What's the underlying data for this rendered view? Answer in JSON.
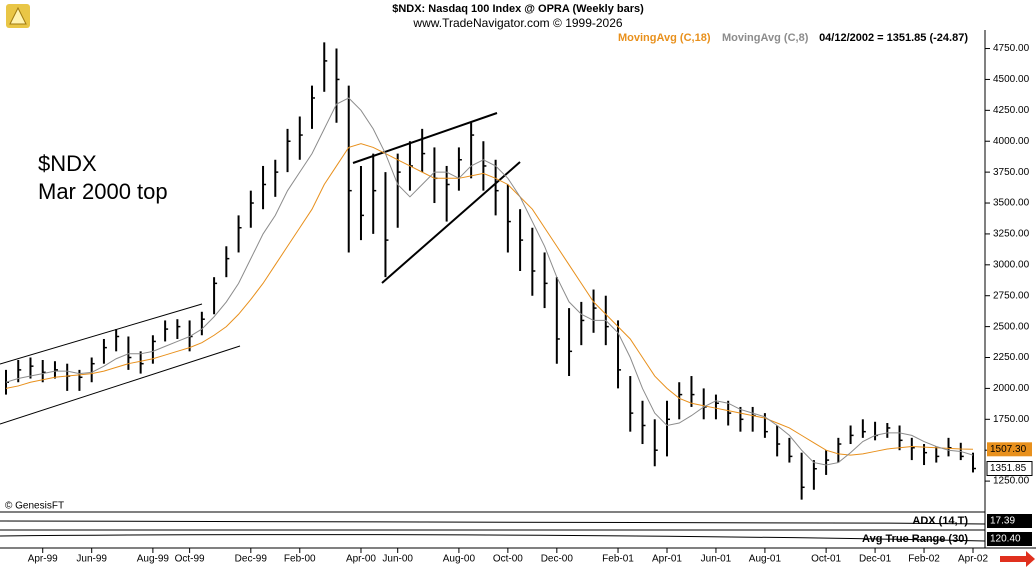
{
  "chart_data": {
    "type": "ohlc",
    "title": "$NDX:  Nasdaq 100 Index @ OPRA  (Weekly bars)",
    "subtitle": "www.TradeNavigator.com © 1999-2026",
    "status": "04/12/2002 = 1351.85 (-24.87)",
    "annotations": [
      "$NDX",
      "Mar 2000 top"
    ],
    "credit": "© GenesisFT",
    "categories": [
      null,
      null,
      null,
      "Apr-99",
      null,
      null,
      null,
      "Jun-99",
      null,
      null,
      null,
      null,
      "Aug-99",
      null,
      null,
      "Oct-99",
      null,
      null,
      null,
      null,
      "Dec-99",
      null,
      null,
      null,
      "Feb-00",
      null,
      null,
      null,
      null,
      "Apr-00",
      null,
      null,
      "Jun-00",
      null,
      null,
      null,
      null,
      "Aug-00",
      null,
      null,
      null,
      "Oct-00",
      null,
      null,
      null,
      "Dec-00",
      null,
      null,
      null,
      null,
      "Feb-01",
      null,
      null,
      null,
      "Apr-01",
      null,
      null,
      null,
      "Jun-01",
      null,
      null,
      null,
      "Aug-01",
      null,
      null,
      null,
      null,
      "Oct-01",
      null,
      null,
      null,
      "Dec-01",
      null,
      null,
      null,
      "Feb-02",
      null,
      null,
      null,
      "Apr-02"
    ],
    "high": [
      2150,
      2230,
      2250,
      2230,
      2220,
      2200,
      2150,
      2250,
      2400,
      2480,
      2420,
      2300,
      2430,
      2550,
      2560,
      2550,
      2620,
      2900,
      3150,
      3400,
      3600,
      3800,
      3850,
      4100,
      4200,
      4450,
      4800,
      4750,
      4450,
      3800,
      3900,
      3750,
      3900,
      4000,
      4100,
      3950,
      3800,
      3950,
      4150,
      4000,
      3850,
      3650,
      3450,
      3300,
      3100,
      2900,
      2650,
      2700,
      2800,
      2750,
      2550,
      2100,
      1900,
      1750,
      1900,
      2050,
      2100,
      2000,
      1950,
      1900,
      1850,
      1850,
      1800,
      1700,
      1600,
      1480,
      1420,
      1500,
      1600,
      1700,
      1750,
      1730,
      1720,
      1700,
      1600,
      1550,
      1530,
      1600,
      1560,
      1480
    ],
    "low": [
      1950,
      2050,
      2080,
      2050,
      2080,
      1980,
      1980,
      2050,
      2200,
      2300,
      2150,
      2120,
      2200,
      2380,
      2400,
      2300,
      2430,
      2600,
      2900,
      3100,
      3300,
      3450,
      3550,
      3750,
      3850,
      4100,
      4400,
      4150,
      3100,
      3200,
      3250,
      2900,
      3300,
      3600,
      3750,
      3500,
      3350,
      3600,
      3700,
      3600,
      3400,
      3100,
      2950,
      2750,
      2650,
      2200,
      2100,
      2350,
      2450,
      2350,
      2000,
      1650,
      1550,
      1370,
      1450,
      1750,
      1850,
      1750,
      1750,
      1700,
      1650,
      1650,
      1600,
      1450,
      1400,
      1100,
      1180,
      1300,
      1400,
      1550,
      1600,
      1580,
      1600,
      1500,
      1420,
      1380,
      1400,
      1450,
      1420,
      1320
    ],
    "close": [
      2050,
      2150,
      2180,
      2130,
      2150,
      2100,
      2090,
      2200,
      2330,
      2420,
      2250,
      2200,
      2380,
      2480,
      2500,
      2420,
      2560,
      2850,
      3050,
      3300,
      3500,
      3650,
      3750,
      4000,
      4050,
      4350,
      4650,
      4500,
      3600,
      3400,
      3600,
      3200,
      3750,
      3800,
      3900,
      3700,
      3650,
      3850,
      4050,
      3800,
      3600,
      3350,
      3200,
      2950,
      2850,
      2400,
      2300,
      2550,
      2650,
      2500,
      2150,
      1800,
      1700,
      1500,
      1750,
      1950,
      1950,
      1850,
      1880,
      1800,
      1750,
      1780,
      1650,
      1550,
      1450,
      1200,
      1350,
      1420,
      1550,
      1620,
      1650,
      1620,
      1680,
      1580,
      1520,
      1480,
      1450,
      1520,
      1450,
      1351.85
    ],
    "bar_color": "#000000",
    "close_label": "1351.85",
    "series": [
      {
        "name": "MovingAvg (C,18)",
        "color": "#e8901c",
        "last_label": "1507.30",
        "values": [
          2000,
          2020,
          2050,
          2070,
          2090,
          2100,
          2110,
          2120,
          2140,
          2170,
          2200,
          2220,
          2240,
          2270,
          2300,
          2330,
          2370,
          2430,
          2500,
          2600,
          2720,
          2850,
          3000,
          3150,
          3300,
          3450,
          3650,
          3800,
          3950,
          3980,
          3950,
          3900,
          3850,
          3800,
          3750,
          3700,
          3700,
          3700,
          3720,
          3740,
          3700,
          3650,
          3550,
          3450,
          3300,
          3150,
          3000,
          2850,
          2700,
          2600,
          2500,
          2400,
          2250,
          2100,
          2000,
          1920,
          1880,
          1860,
          1840,
          1820,
          1800,
          1780,
          1760,
          1720,
          1680,
          1620,
          1560,
          1500,
          1470,
          1460,
          1470,
          1490,
          1510,
          1520,
          1530,
          1525,
          1520,
          1515,
          1510,
          1507.3
        ]
      },
      {
        "name": "MovingAvg (C,8)",
        "color": "#8c8c8c",
        "values": [
          2050,
          2080,
          2100,
          2120,
          2140,
          2140,
          2120,
          2130,
          2180,
          2240,
          2280,
          2280,
          2300,
          2340,
          2380,
          2420,
          2480,
          2580,
          2700,
          2850,
          3050,
          3250,
          3400,
          3600,
          3750,
          3900,
          4100,
          4300,
          4350,
          4250,
          4100,
          3900,
          3650,
          3550,
          3650,
          3750,
          3750,
          3700,
          3800,
          3850,
          3800,
          3700,
          3550,
          3350,
          3150,
          2900,
          2700,
          2600,
          2550,
          2550,
          2450,
          2250,
          2000,
          1800,
          1700,
          1720,
          1780,
          1850,
          1900,
          1880,
          1830,
          1800,
          1770,
          1700,
          1620,
          1500,
          1400,
          1380,
          1400,
          1480,
          1570,
          1620,
          1640,
          1640,
          1620,
          1570,
          1530,
          1500,
          1490,
          1460
        ]
      }
    ],
    "ylim": [
      1000,
      4900
    ],
    "yticks": [
      {
        "value": 1250,
        "label": "1250.00"
      },
      {
        "value": 1500,
        "label": "1500.00"
      },
      {
        "value": 1750,
        "label": "1750.00"
      },
      {
        "value": 2000,
        "label": "2000.00"
      },
      {
        "value": 2250,
        "label": "2250.00"
      },
      {
        "value": 2500,
        "label": "2500.00"
      },
      {
        "value": 2750,
        "label": "2750.00"
      },
      {
        "value": 3000,
        "label": "3000.00"
      },
      {
        "value": 3250,
        "label": "3250.00"
      },
      {
        "value": 3500,
        "label": "3500.00"
      },
      {
        "value": 3750,
        "label": "3750.00"
      },
      {
        "value": 4000,
        "label": "4000.00"
      },
      {
        "value": 4250,
        "label": "4250.00"
      },
      {
        "value": 4500,
        "label": "4500.00"
      },
      {
        "value": 4750,
        "label": "4750.00"
      }
    ],
    "indicators": [
      {
        "name": "ADX (14,T)",
        "last_label": "17.39"
      },
      {
        "name": "Avg True Range (30)",
        "last_label": "120.40"
      }
    ]
  }
}
